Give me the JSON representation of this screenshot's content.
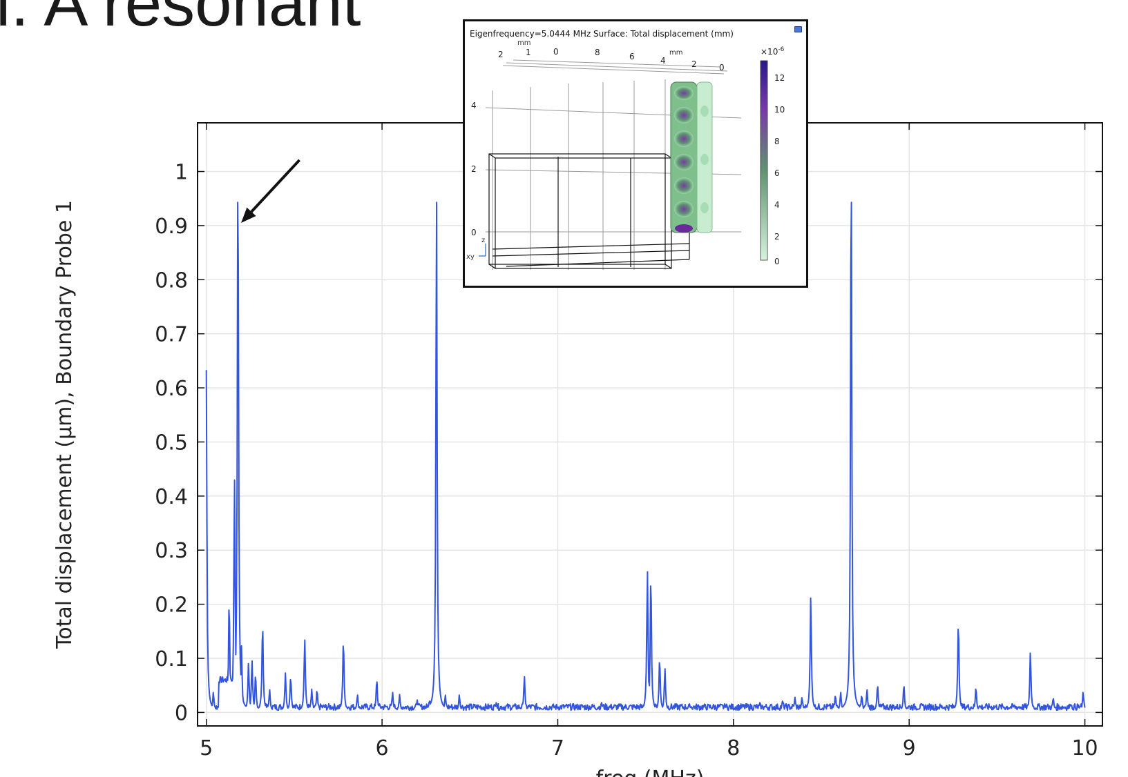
{
  "slide": {
    "title_fragment": "i. A resonant"
  },
  "chart_data": {
    "type": "line",
    "xlabel": "freq (MHz)",
    "ylabel": "Total displacement (µm), Boundary Probe 1",
    "xlim": [
      4.95,
      10.1
    ],
    "ylim": [
      -0.025,
      1.09
    ],
    "x_ticks": [
      "5",
      "6",
      "7",
      "8",
      "9",
      "10"
    ],
    "y_ticks": [
      "0",
      "0.1",
      "0.2",
      "0.3",
      "0.4",
      "0.5",
      "0.6",
      "0.7",
      "0.8",
      "0.9",
      "1"
    ],
    "grid": true,
    "line_color": "#3355dd",
    "baseline": 0.01,
    "peaks": [
      [
        5.0,
        0.63
      ],
      [
        5.04,
        0.035
      ],
      [
        5.13,
        0.21
      ],
      [
        5.16,
        0.44
      ],
      [
        5.18,
        1.06
      ],
      [
        5.2,
        0.12
      ],
      [
        5.24,
        0.09
      ],
      [
        5.26,
        0.095
      ],
      [
        5.28,
        0.07
      ],
      [
        5.32,
        0.165
      ],
      [
        5.36,
        0.04
      ],
      [
        5.45,
        0.07
      ],
      [
        5.48,
        0.065
      ],
      [
        5.56,
        0.135
      ],
      [
        5.6,
        0.04
      ],
      [
        5.63,
        0.04
      ],
      [
        5.78,
        0.135
      ],
      [
        5.86,
        0.03
      ],
      [
        5.97,
        0.06
      ],
      [
        6.06,
        0.035
      ],
      [
        6.1,
        0.03
      ],
      [
        6.2,
        0.02
      ],
      [
        6.27,
        0.02
      ],
      [
        6.31,
        0.97
      ],
      [
        6.36,
        0.03
      ],
      [
        6.44,
        0.03
      ],
      [
        6.65,
        0.015
      ],
      [
        6.81,
        0.065
      ],
      [
        7.25,
        0.015
      ],
      [
        7.51,
        0.265
      ],
      [
        7.53,
        0.26
      ],
      [
        7.58,
        0.1
      ],
      [
        7.61,
        0.08
      ],
      [
        7.75,
        0.012
      ],
      [
        7.95,
        0.012
      ],
      [
        8.15,
        0.015
      ],
      [
        8.28,
        0.02
      ],
      [
        8.35,
        0.025
      ],
      [
        8.39,
        0.025
      ],
      [
        8.44,
        0.215
      ],
      [
        8.58,
        0.03
      ],
      [
        8.61,
        0.035
      ],
      [
        8.67,
        1.06
      ],
      [
        8.73,
        0.03
      ],
      [
        8.76,
        0.04
      ],
      [
        8.82,
        0.05
      ],
      [
        8.97,
        0.05
      ],
      [
        9.28,
        0.17
      ],
      [
        9.38,
        0.045
      ],
      [
        9.69,
        0.11
      ],
      [
        9.82,
        0.025
      ],
      [
        9.92,
        0.012
      ],
      [
        9.99,
        0.035
      ]
    ]
  },
  "arrow": {
    "from": [
      5.53,
      0.9
    ],
    "to": [
      5.19,
      0.905
    ]
  },
  "inset": {
    "title": "Eigenfrequency=5.0444 MHz  Surface: Total displacement (mm)",
    "top_axis_unit_left": "mm",
    "top_axis_unit_right": "mm",
    "top_ticks_left": [
      "2",
      "1",
      "0"
    ],
    "top_ticks_right": [
      "8",
      "6",
      "4",
      "2",
      "0"
    ],
    "z_ticks": [
      "4",
      "2",
      "0"
    ],
    "colorbar_multiplier": "×10",
    "colorbar_exponent": "-6",
    "colorbar_ticks": [
      "12",
      "10",
      "8",
      "6",
      "4",
      "2",
      "0"
    ],
    "axis_label_z": "z",
    "axis_label_xy": "xy",
    "colors": {
      "low": "#d6f3dc",
      "mid": "#5e9470",
      "high": "#2a1a8a",
      "purple": "#7a3aa8"
    }
  }
}
